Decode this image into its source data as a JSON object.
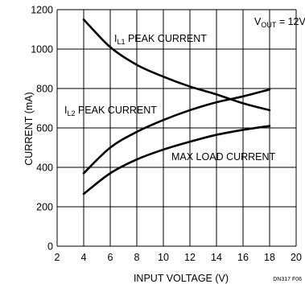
{
  "chart_data": {
    "type": "line",
    "xlabel": "INPUT VOLTAGE (V)",
    "ylabel": "CURRENT (mA)",
    "xlim": [
      2,
      20
    ],
    "ylim": [
      0,
      1200
    ],
    "xticks": [
      2,
      4,
      6,
      8,
      10,
      12,
      14,
      16,
      18,
      20
    ],
    "yticks": [
      0,
      200,
      400,
      600,
      800,
      1000,
      1200
    ],
    "grid": true,
    "annotation": {
      "prefix": "V",
      "sub": "OUT",
      "suffix": " = 12V"
    },
    "figure_id": "DN317 F06",
    "series": [
      {
        "label_prefix": "I",
        "label_sub": "L1",
        "label_suffix": " PEAK CURRENT",
        "x": [
          4,
          6,
          8,
          10,
          12,
          14,
          16,
          18
        ],
        "y": [
          1150,
          1010,
          920,
          860,
          810,
          770,
          725,
          690
        ]
      },
      {
        "label_prefix": "I",
        "label_sub": "L2",
        "label_suffix": " PEAK CURRENT",
        "x": [
          4,
          6,
          8,
          10,
          12,
          14,
          16,
          18
        ],
        "y": [
          370,
          500,
          580,
          640,
          690,
          730,
          760,
          795
        ]
      },
      {
        "label": "MAX LOAD CURRENT",
        "x": [
          4,
          6,
          8,
          10,
          12,
          14,
          16,
          18
        ],
        "y": [
          265,
          370,
          440,
          490,
          530,
          565,
          590,
          610
        ]
      }
    ]
  }
}
